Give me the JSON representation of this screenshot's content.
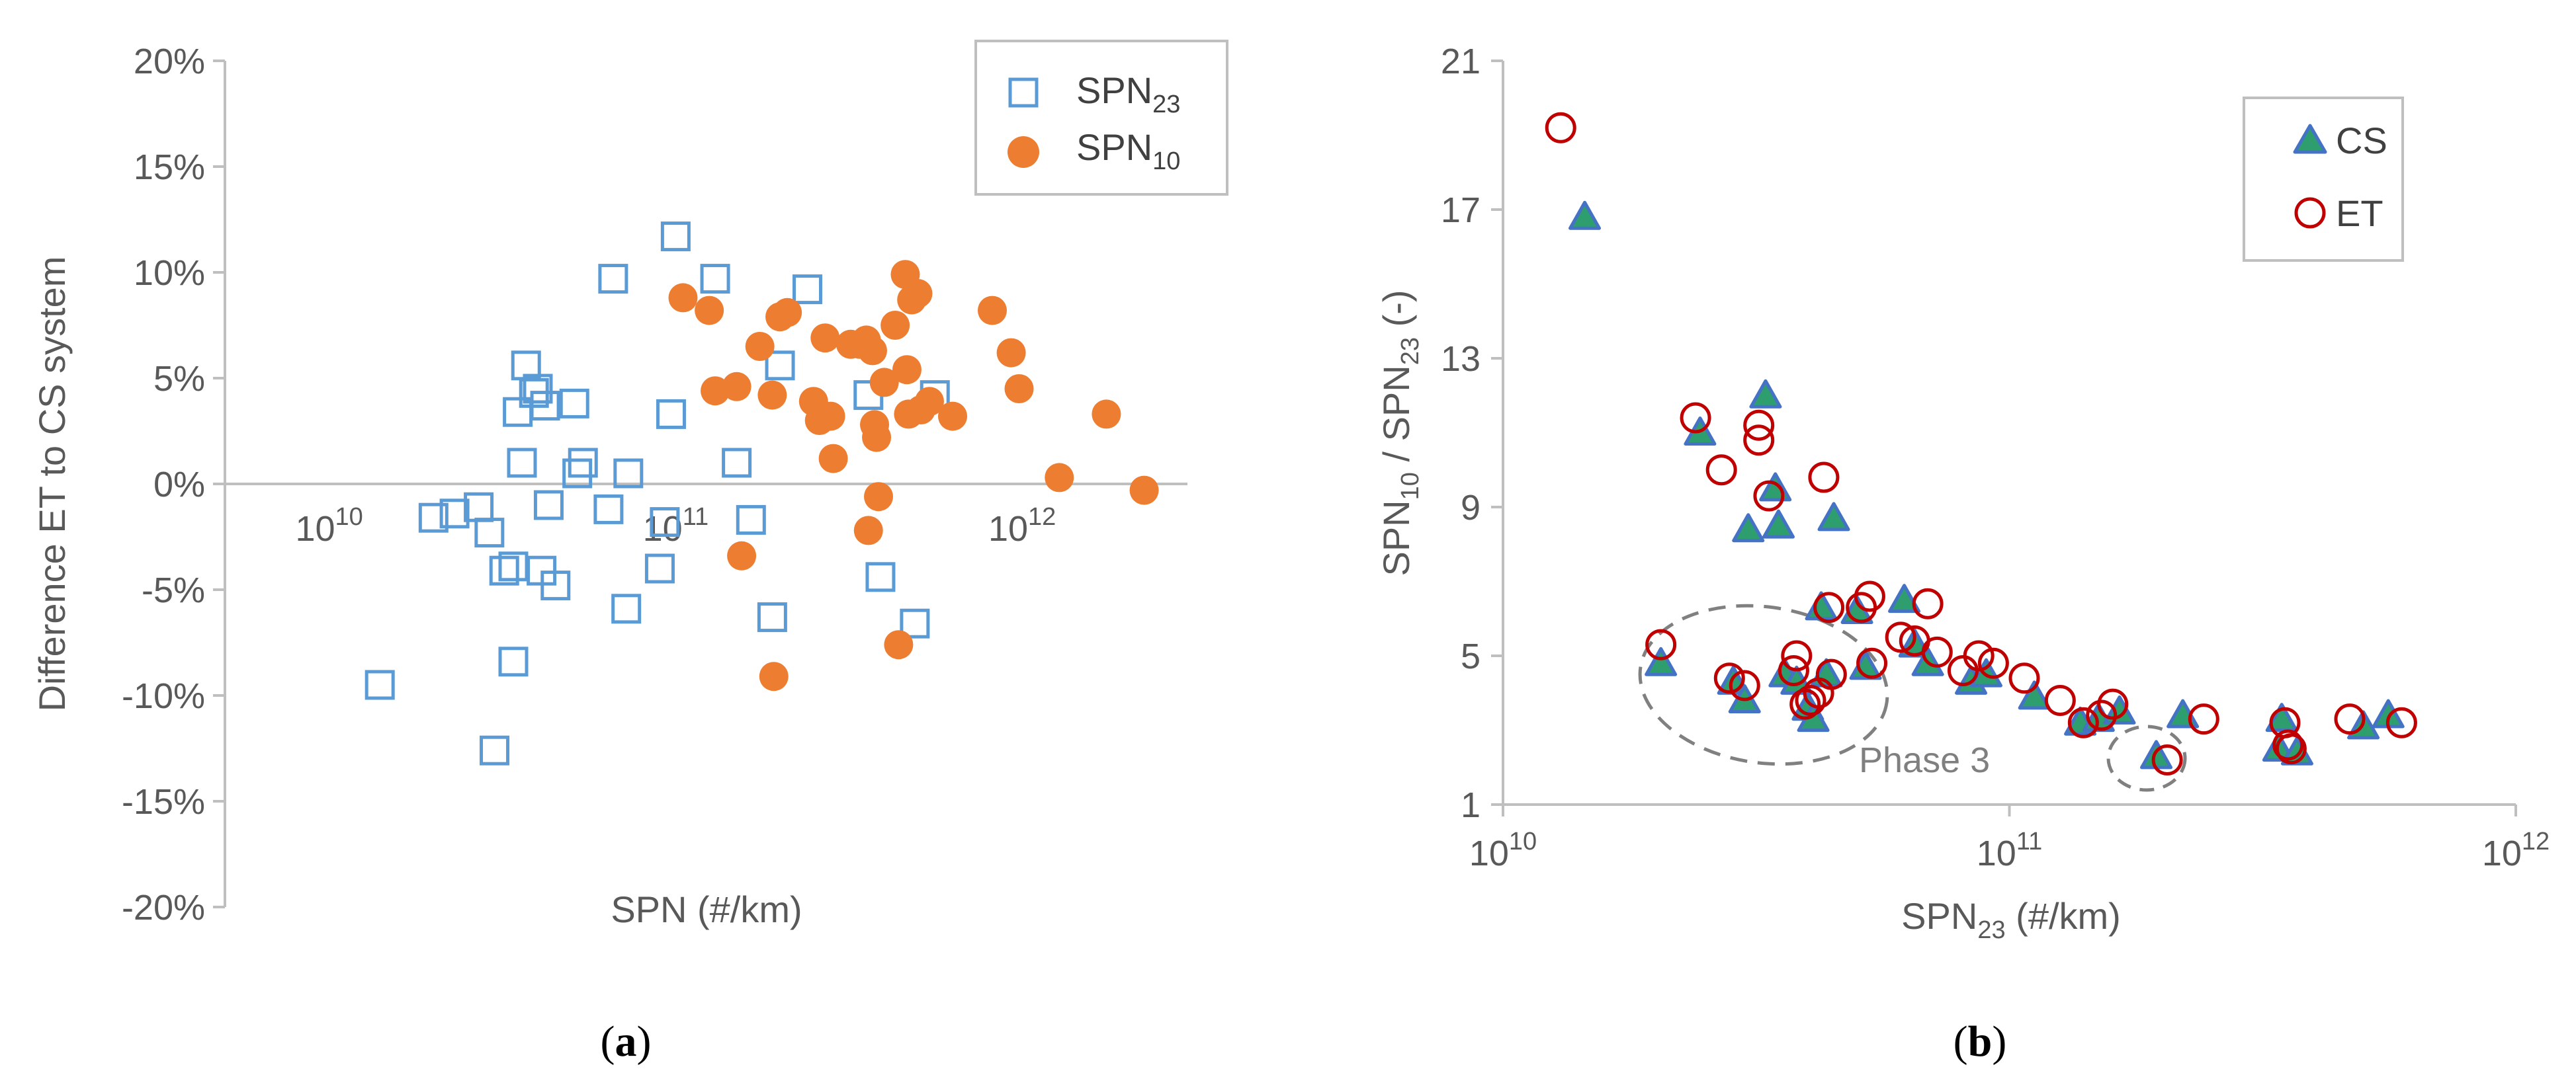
{
  "colors": {
    "spn23": "#5B9BD5",
    "spn10": "#ED7D31",
    "cs_fill": "#2E9E6E",
    "cs_edge": "#4472C4",
    "et": "#C00000",
    "axis": "#BFBFBF",
    "text": "#595959",
    "dash": "#808080"
  },
  "chart_data": [
    {
      "type": "scatter",
      "panel_label": "(a)",
      "panel_letter": "a",
      "xlabel": "SPN (#/km)",
      "ylabel": "Difference ET to CS system",
      "x_scale": "log",
      "xlim": [
        5000000000.0,
        3000000000000.0
      ],
      "ylim": [
        -20,
        20
      ],
      "x_ticks": [
        {
          "value": 10000000000.0,
          "base": "10",
          "exp": "10"
        },
        {
          "value": 100000000000.0,
          "base": "10",
          "exp": "11"
        },
        {
          "value": 1000000000000.0,
          "base": "10",
          "exp": "12"
        }
      ],
      "y_ticks": [
        {
          "value": 20,
          "label": "20%"
        },
        {
          "value": 15,
          "label": "15%"
        },
        {
          "value": 10,
          "label": "10%"
        },
        {
          "value": 5,
          "label": "5%"
        },
        {
          "value": 0,
          "label": "0%"
        },
        {
          "value": -5,
          "label": "-5%"
        },
        {
          "value": -10,
          "label": "-10%"
        },
        {
          "value": -15,
          "label": "-15%"
        },
        {
          "value": -20,
          "label": "-20%"
        }
      ],
      "legend": [
        {
          "base": "SPN",
          "sub": "23",
          "marker": "open-square"
        },
        {
          "base": "SPN",
          "sub": "10",
          "marker": "filled-circle"
        }
      ],
      "series": [
        {
          "name": "SPN23",
          "points": [
            [
              14000000000.0,
              -9.5
            ],
            [
              20000000000.0,
              -1.6
            ],
            [
              23000000000.0,
              -1.4
            ],
            [
              27000000000.0,
              -1.1
            ],
            [
              29000000000.0,
              -2.3
            ],
            [
              30000000000.0,
              -12.6
            ],
            [
              32000000000.0,
              -4.1
            ],
            [
              34000000000.0,
              -8.4
            ],
            [
              34000000000.0,
              -3.9
            ],
            [
              35000000000.0,
              3.4
            ],
            [
              36000000000.0,
              1.0
            ],
            [
              37000000000.0,
              5.6
            ],
            [
              39000000000.0,
              4.3
            ],
            [
              40000000000.0,
              4.5
            ],
            [
              41000000000.0,
              -4.1
            ],
            [
              42000000000.0,
              3.7
            ],
            [
              43000000000.0,
              -1.0
            ],
            [
              45000000000.0,
              -4.8
            ],
            [
              51000000000.0,
              3.8
            ],
            [
              52000000000.0,
              0.5
            ],
            [
              54000000000.0,
              1.0
            ],
            [
              64000000000.0,
              -1.2
            ],
            [
              66000000000.0,
              9.7
            ],
            [
              72000000000.0,
              -5.9
            ],
            [
              73000000000.0,
              0.5
            ],
            [
              90000000000.0,
              -4.0
            ],
            [
              93000000000.0,
              -1.8
            ],
            [
              97000000000.0,
              3.3
            ],
            [
              100000000000.0,
              11.7
            ],
            [
              130000000000.0,
              9.7
            ],
            [
              150000000000.0,
              1.0
            ],
            [
              165000000000.0,
              -1.7
            ],
            [
              190000000000.0,
              -6.3
            ],
            [
              200000000000.0,
              5.6
            ],
            [
              240000000000.0,
              9.2
            ],
            [
              360000000000.0,
              4.2
            ],
            [
              390000000000.0,
              -4.4
            ],
            [
              490000000000.0,
              -6.6
            ],
            [
              560000000000.0,
              4.2
            ]
          ]
        },
        {
          "name": "SPN10",
          "points": [
            [
              105000000000.0,
              8.8
            ],
            [
              125000000000.0,
              8.2
            ],
            [
              130000000000.0,
              4.4
            ],
            [
              150000000000.0,
              4.6
            ],
            [
              155000000000.0,
              -3.4
            ],
            [
              175000000000.0,
              6.5
            ],
            [
              190000000000.0,
              4.2
            ],
            [
              192000000000.0,
              -9.1
            ],
            [
              200000000000.0,
              7.9
            ],
            [
              210000000000.0,
              8.1
            ],
            [
              250000000000.0,
              3.9
            ],
            [
              260000000000.0,
              3.0
            ],
            [
              270000000000.0,
              6.9
            ],
            [
              280000000000.0,
              3.2
            ],
            [
              285000000000.0,
              1.2
            ],
            [
              320000000000.0,
              6.6
            ],
            [
              340000000000.0,
              6.6
            ],
            [
              355000000000.0,
              6.8
            ],
            [
              360000000000.0,
              -2.2
            ],
            [
              370000000000.0,
              6.3
            ],
            [
              375000000000.0,
              2.8
            ],
            [
              380000000000.0,
              2.2
            ],
            [
              385000000000.0,
              -0.6
            ],
            [
              400000000000.0,
              4.8
            ],
            [
              430000000000.0,
              7.5
            ],
            [
              440000000000.0,
              -7.6
            ],
            [
              460000000000.0,
              9.9
            ],
            [
              465000000000.0,
              5.4
            ],
            [
              470000000000.0,
              3.3
            ],
            [
              480000000000.0,
              8.7
            ],
            [
              500000000000.0,
              9.0
            ],
            [
              510000000000.0,
              3.5
            ],
            [
              540000000000.0,
              3.9
            ],
            [
              630000000000.0,
              3.2
            ],
            [
              820000000000.0,
              8.2
            ],
            [
              930000000000.0,
              6.2
            ],
            [
              980000000000.0,
              4.5
            ],
            [
              1280000000000.0,
              0.3
            ],
            [
              1750000000000.0,
              3.3
            ],
            [
              2250000000000.0,
              -0.3
            ]
          ]
        }
      ]
    },
    {
      "type": "scatter",
      "panel_label": "(b)",
      "panel_letter": "b",
      "xlabel_base": "SPN",
      "xlabel_sub": "23",
      "xlabel_rest": " (#/km)",
      "ylabel_parts": {
        "a": "SPN",
        "a_sub": "10",
        "mid": " / SPN",
        "b_sub": "23",
        "end": " (-)"
      },
      "x_scale": "log",
      "xlim": [
        10000000000.0,
        1000000000000.0
      ],
      "ylim": [
        1,
        21
      ],
      "x_ticks": [
        {
          "value": 10000000000.0,
          "base": "10",
          "exp": "10"
        },
        {
          "value": 100000000000.0,
          "base": "10",
          "exp": "11"
        },
        {
          "value": 1000000000000.0,
          "base": "10",
          "exp": "12"
        }
      ],
      "y_ticks": [
        {
          "value": 21,
          "label": "21"
        },
        {
          "value": 17,
          "label": "17"
        },
        {
          "value": 13,
          "label": "13"
        },
        {
          "value": 9,
          "label": "9"
        },
        {
          "value": 5,
          "label": "5"
        },
        {
          "value": 1,
          "label": "1"
        }
      ],
      "legend": [
        {
          "label": "CS",
          "marker": "filled-triangle"
        },
        {
          "label": "ET",
          "marker": "open-circle"
        }
      ],
      "annotations": [
        {
          "text": "Phase 3"
        }
      ],
      "series": [
        {
          "name": "CS",
          "points": [
            [
              14500000000.0,
              16.8
            ],
            [
              20500000000.0,
              4.8
            ],
            [
              24500000000.0,
              11.0
            ],
            [
              28500000000.0,
              4.3
            ],
            [
              30000000000.0,
              3.8
            ],
            [
              30500000000.0,
              8.4
            ],
            [
              33000000000.0,
              12.0
            ],
            [
              34500000000.0,
              9.5
            ],
            [
              35000000000.0,
              8.5
            ],
            [
              36000000000.0,
              4.5
            ],
            [
              38000000000.0,
              4.3
            ],
            [
              40000000000.0,
              3.6
            ],
            [
              41000000000.0,
              3.3
            ],
            [
              42500000000.0,
              6.3
            ],
            [
              43500000000.0,
              4.5
            ],
            [
              45000000000.0,
              8.7
            ],
            [
              50000000000.0,
              6.2
            ],
            [
              52000000000.0,
              4.7
            ],
            [
              62000000000.0,
              6.5
            ],
            [
              65000000000.0,
              5.3
            ],
            [
              69000000000.0,
              4.8
            ],
            [
              84000000000.0,
              4.3
            ],
            [
              90000000000.0,
              4.5
            ],
            [
              112000000000.0,
              3.9
            ],
            [
              138000000000.0,
              3.2
            ],
            [
              150000000000.0,
              3.3
            ],
            [
              165000000000.0,
              3.5
            ],
            [
              195000000000.0,
              2.3
            ],
            [
              220000000000.0,
              3.4
            ],
            [
              340000000000.0,
              2.5
            ],
            [
              345000000000.0,
              3.3
            ],
            [
              370000000000.0,
              2.4
            ],
            [
              500000000000.0,
              3.1
            ],
            [
              560000000000.0,
              3.4
            ]
          ]
        },
        {
          "name": "ET",
          "points": [
            [
              13000000000.0,
              19.2
            ],
            [
              20500000000.0,
              5.3
            ],
            [
              24000000000.0,
              11.4
            ],
            [
              27000000000.0,
              10.0
            ],
            [
              28000000000.0,
              4.4
            ],
            [
              30000000000.0,
              4.2
            ],
            [
              32000000000.0,
              11.2
            ],
            [
              32000000000.0,
              10.8
            ],
            [
              33500000000.0,
              9.3
            ],
            [
              37500000000.0,
              4.6
            ],
            [
              38000000000.0,
              5.0
            ],
            [
              39500000000.0,
              3.7
            ],
            [
              40500000000.0,
              3.8
            ],
            [
              42000000000.0,
              4.0
            ],
            [
              43000000000.0,
              9.8
            ],
            [
              44000000000.0,
              6.3
            ],
            [
              44500000000.0,
              4.5
            ],
            [
              51000000000.0,
              6.3
            ],
            [
              53000000000.0,
              6.6
            ],
            [
              53500000000.0,
              4.8
            ],
            [
              61000000000.0,
              5.5
            ],
            [
              65000000000.0,
              5.4
            ],
            [
              69000000000.0,
              6.4
            ],
            [
              72000000000.0,
              5.1
            ],
            [
              81000000000.0,
              4.6
            ],
            [
              87000000000.0,
              5.0
            ],
            [
              93000000000.0,
              4.8
            ],
            [
              107000000000.0,
              4.4
            ],
            [
              126000000000.0,
              3.8
            ],
            [
              140000000000.0,
              3.2
            ],
            [
              152000000000.0,
              3.4
            ],
            [
              160000000000.0,
              3.7
            ],
            [
              205000000000.0,
              2.2
            ],
            [
              242000000000.0,
              3.3
            ],
            [
              350000000000.0,
              3.2
            ],
            [
              355000000000.0,
              2.6
            ],
            [
              360000000000.0,
              2.5
            ],
            [
              470000000000.0,
              3.3
            ],
            [
              595000000000.0,
              3.2
            ]
          ]
        }
      ]
    }
  ]
}
